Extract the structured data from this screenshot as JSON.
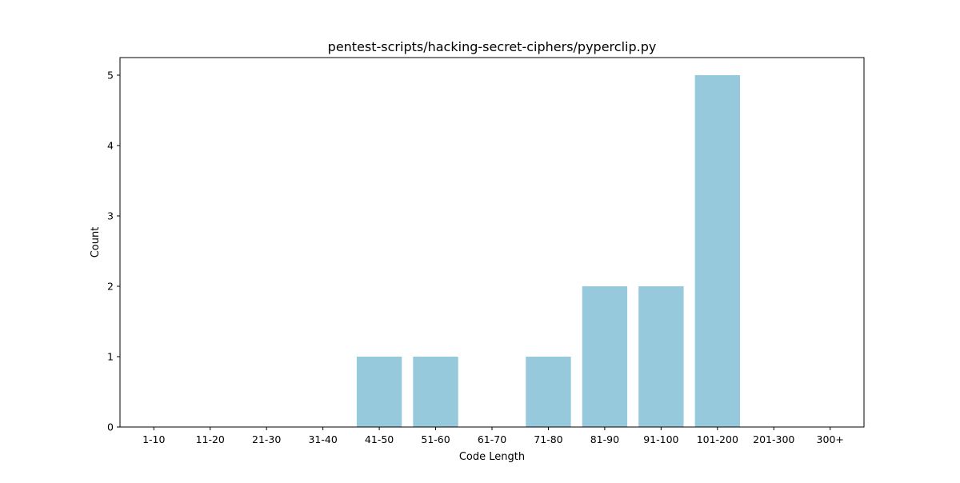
{
  "chart_data": {
    "type": "bar",
    "title": "pentest-scripts/hacking-secret-ciphers/pyperclip.py",
    "xlabel": "Code Length",
    "ylabel": "Count",
    "categories": [
      "1-10",
      "11-20",
      "21-30",
      "31-40",
      "41-50",
      "51-60",
      "61-70",
      "71-80",
      "81-90",
      "91-100",
      "101-200",
      "201-300",
      "300+"
    ],
    "values": [
      0,
      0,
      0,
      0,
      1,
      1,
      0,
      1,
      2,
      2,
      5,
      0,
      0
    ],
    "ylim": [
      0,
      5.25
    ],
    "yticks": [
      "0",
      "1",
      "2",
      "3",
      "4",
      "5"
    ],
    "grid": false,
    "bar_color": "#96c9dc"
  }
}
